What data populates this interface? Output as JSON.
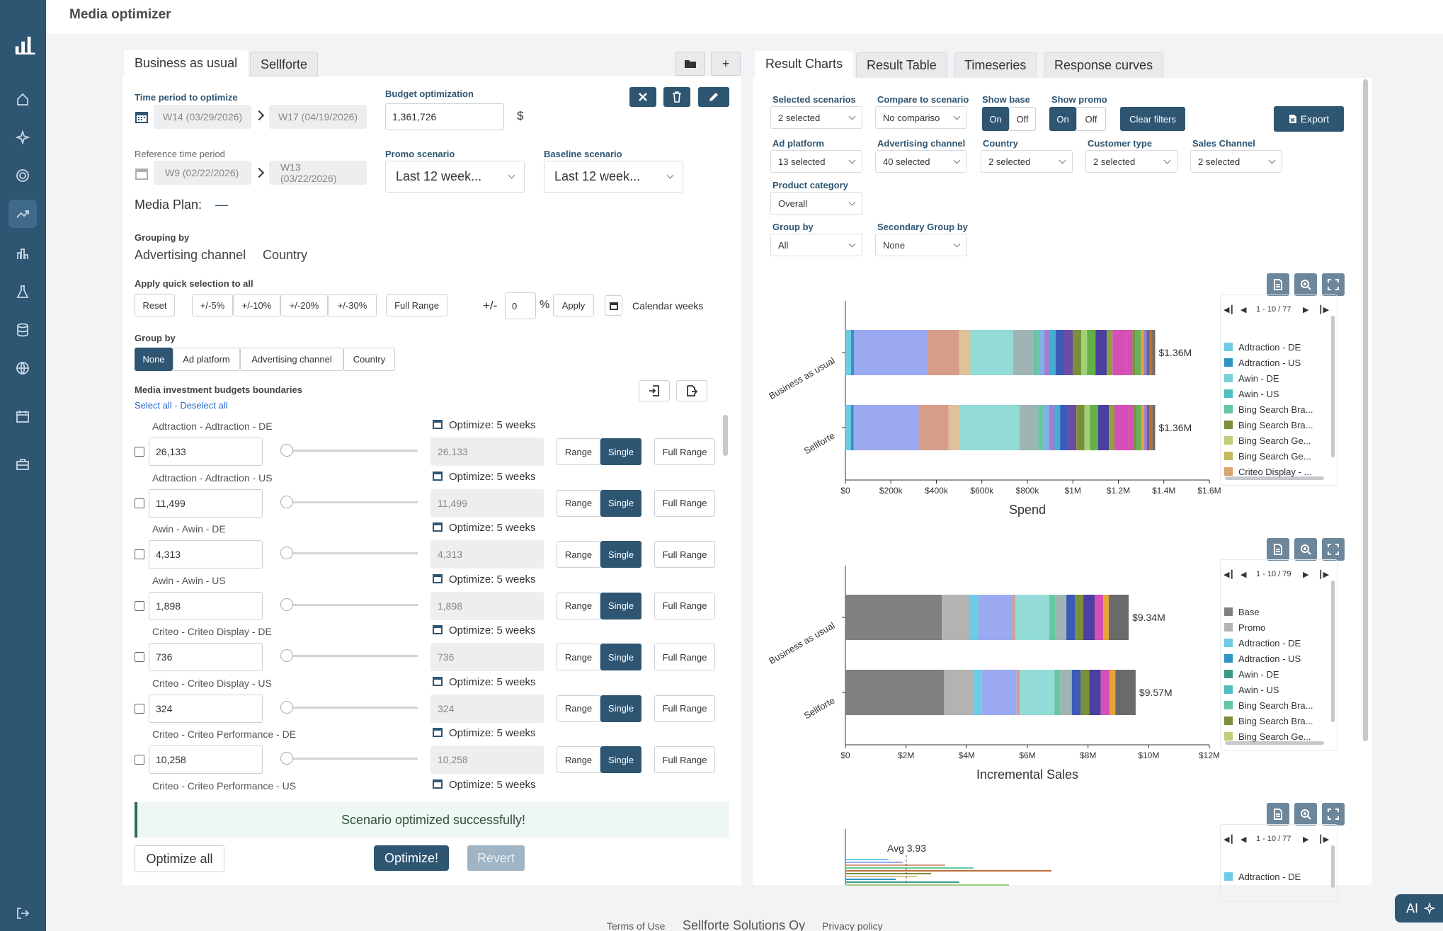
{
  "app": {
    "title": "Media optimizer"
  },
  "sidebar": {
    "items": [
      "logo-icon",
      "home-icon",
      "sparkle-icon",
      "target-icon",
      "trend-icon",
      "bar-chart-icon",
      "flask-icon",
      "database-icon",
      "globe-icon",
      "calendar-check-icon",
      "briefcase-icon",
      "logout-icon"
    ],
    "active_index": 4
  },
  "left": {
    "tabs": [
      "Business as usual",
      "Sellforte"
    ],
    "time_period_label": "Time period to optimize",
    "time_from": "W14 (03/29/2026)",
    "time_to": "W17 (04/19/2026)",
    "budget_label": "Budget optimization",
    "budget_value": "1,361,726",
    "currency": "$",
    "ref_label": "Reference time period",
    "ref_from": "W9 (02/22/2026)",
    "ref_to": "W13 (03/22/2026)",
    "promo_label": "Promo scenario",
    "promo_value": "Last 12 week...",
    "baseline_label": "Baseline scenario",
    "baseline_value": "Last 12 week...",
    "media_plan_label": "Media Plan:",
    "media_plan_value": "—",
    "grouping_label": "Grouping by",
    "grouping_values": [
      "Advertising channel",
      "Country"
    ],
    "quick_label": "Apply quick selection to all",
    "quick_buttons": [
      "Reset",
      "+/-5%",
      "+/-10%",
      "+/-20%",
      "+/-30%",
      "Full Range"
    ],
    "pm_label": "+/-",
    "pm_value": "0",
    "pct": "%",
    "apply": "Apply",
    "calendar_weeks": "Calendar weeks",
    "group_by_label": "Group by",
    "group_by_buttons": [
      "None",
      "Ad platform",
      "Advertising channel",
      "Country"
    ],
    "boundaries_label": "Media investment budgets boundaries",
    "select_all": "Select all",
    "deselect_sep": " - ",
    "deselect_all": "Deselect all",
    "range": "Range",
    "single": "Single",
    "full_range": "Full Range",
    "rows": [
      {
        "name": "Adtraction - Adtraction - DE",
        "value": "26,133",
        "opt": "Optimize: 5 weeks"
      },
      {
        "name": "Adtraction - Adtraction - US",
        "value": "11,499",
        "opt": "Optimize: 5 weeks"
      },
      {
        "name": "Awin - Awin - DE",
        "value": "4,313",
        "opt": "Optimize: 5 weeks"
      },
      {
        "name": "Awin - Awin - US",
        "value": "1,898",
        "opt": "Optimize: 5 weeks"
      },
      {
        "name": "Criteo - Criteo Display - DE",
        "value": "736",
        "opt": "Optimize: 5 weeks"
      },
      {
        "name": "Criteo - Criteo Display - US",
        "value": "324",
        "opt": "Optimize: 5 weeks"
      },
      {
        "name": "Criteo - Criteo Performance - DE",
        "value": "10,258",
        "opt": "Optimize: 5 weeks"
      },
      {
        "name": "Criteo - Criteo Performance - US",
        "value": "",
        "opt": "Optimize: 5 weeks"
      }
    ],
    "success": "Scenario optimized successfully!",
    "optimize_all": "Optimize all",
    "optimize": "Optimize!",
    "revert": "Revert"
  },
  "right": {
    "tabs": [
      "Result Charts",
      "Result Table",
      "Timeseries",
      "Response curves"
    ],
    "filters": [
      {
        "label": "Selected scenarios",
        "value": "2 selected"
      },
      {
        "label": "Compare to scenario",
        "value": "No compariso"
      },
      {
        "label": "Ad platform",
        "value": "13 selected"
      },
      {
        "label": "Advertising channel",
        "value": "40 selected"
      },
      {
        "label": "Country",
        "value": "2 selected"
      },
      {
        "label": "Customer type",
        "value": "2 selected"
      },
      {
        "label": "Sales Channel",
        "value": "2 selected"
      },
      {
        "label": "Product category",
        "value": "Overall"
      },
      {
        "label": "Group by",
        "value": "All"
      },
      {
        "label": "Secondary Group by",
        "value": "None"
      }
    ],
    "show_base": "Show base",
    "show_promo": "Show promo",
    "on": "On",
    "off": "Off",
    "clear_filters": "Clear filters",
    "export": "Export",
    "spend_pager": "1 - 10 / 77",
    "sales_pager": "1 - 10 / 79",
    "roi_pager": "1 - 10 / 77",
    "spend_legend": [
      "Adtraction - DE",
      "Adtraction - US",
      "Awin - DE",
      "Awin - US",
      "Bing Search Bra...",
      "Bing Search Bra...",
      "Bing Search Ge...",
      "Bing Search Ge...",
      "Criteo Display - ..."
    ],
    "sales_legend": [
      "Base",
      "Promo",
      "Adtraction - DE",
      "Adtraction - US",
      "Awin - DE",
      "Awin - US",
      "Bing Search Bra...",
      "Bing Search Bra...",
      "Bing Search Ge..."
    ],
    "roi_legend": [
      "Adtraction - DE"
    ],
    "roi_avg": "Avg 3.93"
  },
  "chart_data": [
    {
      "type": "bar",
      "title": "Spend",
      "categories": [
        "Business as usual",
        "Sellforte"
      ],
      "totals": [
        "$1.36M",
        "$1.36M"
      ],
      "values": [
        1361726,
        1361726
      ],
      "xticks": [
        "$0",
        "$200k",
        "$400k",
        "$600k",
        "$800k",
        "$1M",
        "$1.2M",
        "$1.4M",
        "$1.6M"
      ],
      "xlim": [
        0,
        1600000
      ],
      "stacked": true
    },
    {
      "type": "bar",
      "title": "Incremental Sales",
      "categories": [
        "Business as usual",
        "Sellforte"
      ],
      "totals": [
        "$9.34M",
        "$9.57M"
      ],
      "values": [
        9340000,
        9570000
      ],
      "xticks": [
        "$0",
        "$2M",
        "$4M",
        "$6M",
        "$8M",
        "$10M",
        "$12M"
      ],
      "xlim": [
        0,
        12000000
      ],
      "stacked": true
    }
  ],
  "colors": {
    "primary": "#2e5572",
    "success_bg": "#eef7f2",
    "success_border": "#2f6b4f"
  },
  "footer": {
    "terms": "Terms of Use",
    "company": "Sellforte Solutions Oy",
    "privacy": "Privacy policy",
    "ai": "AI"
  }
}
